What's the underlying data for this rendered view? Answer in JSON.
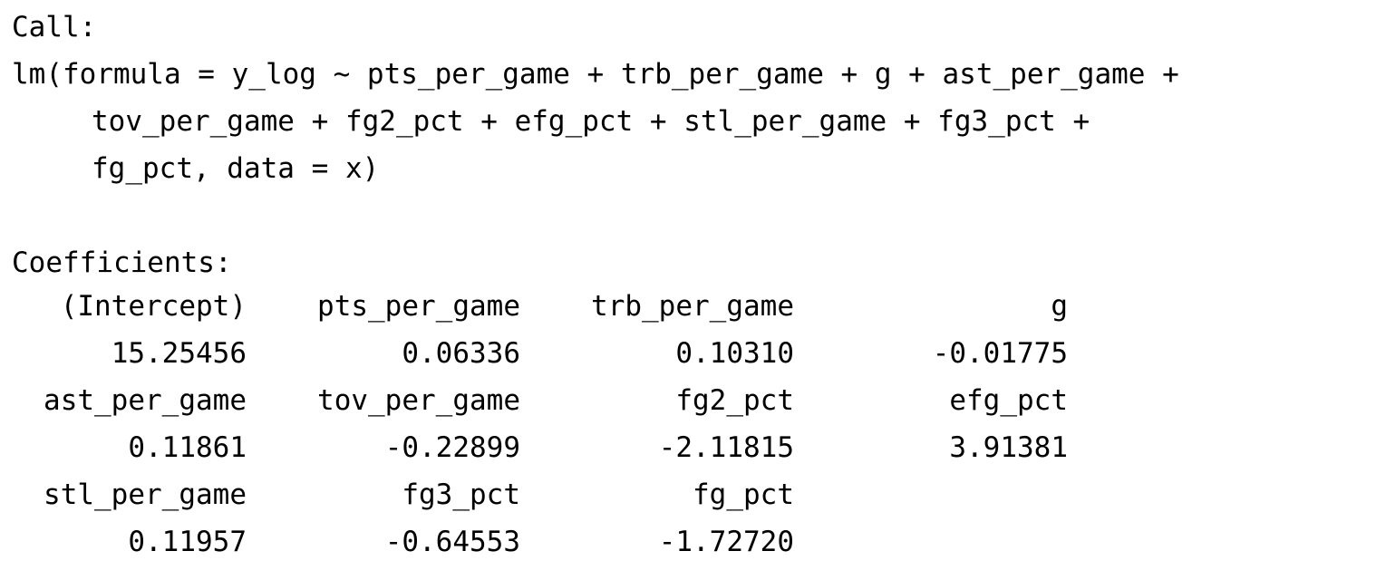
{
  "call_label": "Call:",
  "call_lines": [
    "lm(formula = y_log ~ pts_per_game + trb_per_game + g + ast_per_game +",
    "tov_per_game + fg2_pct + efg_pct + stl_per_game + fg3_pct +",
    "fg_pct, data = x)"
  ],
  "coefficients_label": "Coefficients:",
  "coefficient_rows": [
    {
      "names": [
        "(Intercept)",
        "pts_per_game",
        "trb_per_game",
        "g"
      ],
      "values": [
        "15.25456",
        "0.06336",
        "0.10310",
        "-0.01775"
      ]
    },
    {
      "names": [
        "ast_per_game",
        "tov_per_game",
        "fg2_pct",
        "efg_pct"
      ],
      "values": [
        "0.11861",
        "-0.22899",
        "-2.11815",
        "3.91381"
      ]
    },
    {
      "names": [
        "stl_per_game",
        "fg3_pct",
        "fg_pct",
        ""
      ],
      "values": [
        "0.11957",
        "-0.64553",
        "-1.72720",
        ""
      ]
    }
  ]
}
